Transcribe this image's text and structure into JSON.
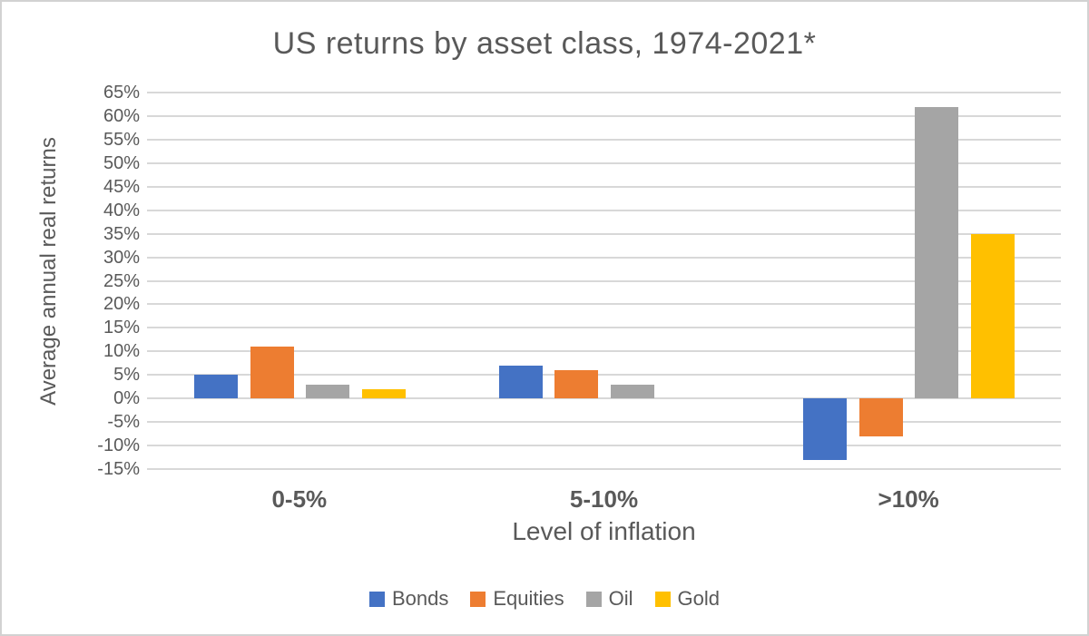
{
  "window": {
    "background": "#ffffff",
    "border_color": "#d2d2d2",
    "text_color": "#595959"
  },
  "chart_data": {
    "type": "bar",
    "title": "US returns by asset class, 1974-2021*",
    "xlabel": "Level of inflation",
    "ylabel": "Average annual real returns",
    "categories": [
      "0-5%",
      "5-10%",
      ">10%"
    ],
    "series": [
      {
        "name": "Bonds",
        "color": "#4472C4",
        "values": [
          5,
          7,
          -13
        ]
      },
      {
        "name": "Equities",
        "color": "#ED7D31",
        "values": [
          11,
          6,
          -8
        ]
      },
      {
        "name": "Oil",
        "color": "#A5A5A5",
        "values": [
          3,
          3,
          62
        ]
      },
      {
        "name": "Gold",
        "color": "#FFC000",
        "values": [
          2,
          0,
          35
        ]
      }
    ],
    "ylim": [
      -15,
      65
    ],
    "ytick_step": 5,
    "ytick_format": "{v}%",
    "grid": true,
    "gridline_color": "#d8d8d8",
    "legend_position": "bottom"
  }
}
